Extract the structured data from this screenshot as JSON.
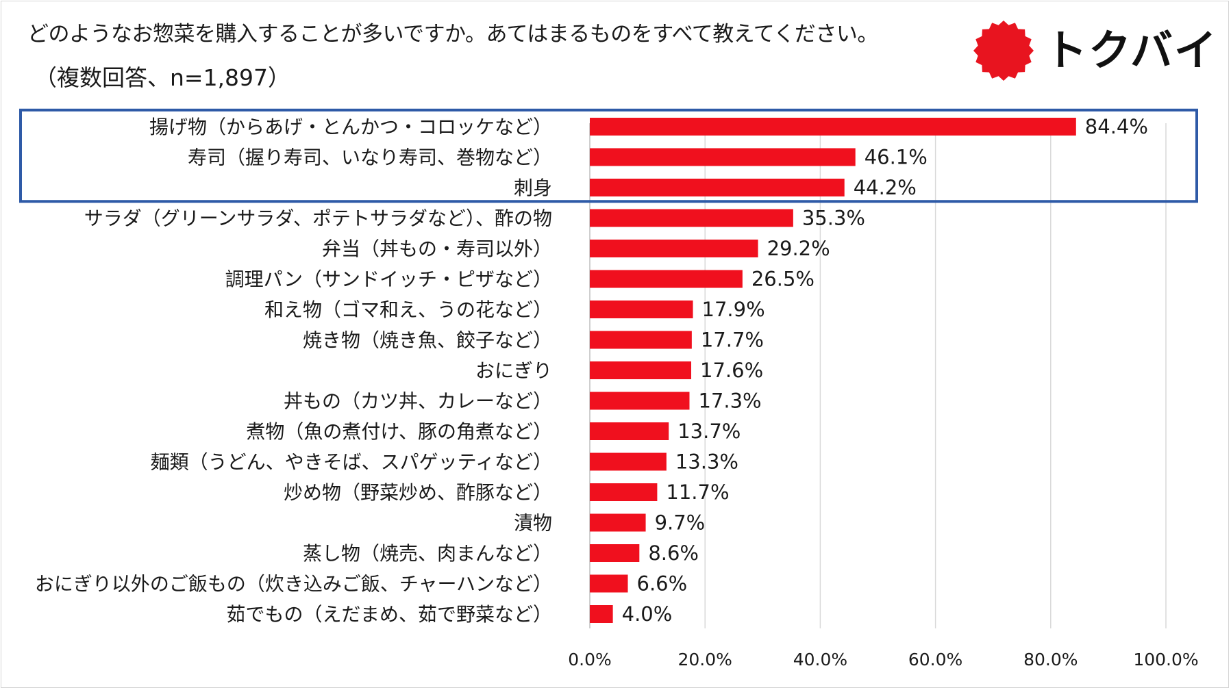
{
  "header": {
    "title": "どのようなお惣菜を購入することが多いですか。あてはまるものをすべて教えてください。",
    "subtitle": "（複数回答、n=1,897）"
  },
  "logo": {
    "text": "トクバイ",
    "brand_color": "#E8141F",
    "icon": "red-sun-seal-icon"
  },
  "colors": {
    "bar": "#F0101E",
    "highlight_box": "#2E5AA7",
    "grid": "#D9D9D9"
  },
  "chart_data": {
    "type": "bar",
    "orientation": "horizontal",
    "title": "どのようなお惣菜を購入することが多いですか。あてはまるものをすべて教えてください。",
    "xlabel": "",
    "ylabel": "",
    "xlim": [
      0,
      100
    ],
    "grid": true,
    "categories": [
      "揚げ物（からあげ・とんかつ・コロッケなど）",
      "寿司（握り寿司、いなり寿司、巻物など）",
      "刺身",
      "サラダ（グリーンサラダ、ポテトサラダなど）、酢の物",
      "弁当（丼もの・寿司以外）",
      "調理パン（サンドイッチ・ピザなど）",
      "和え物（ゴマ和え、うの花など）",
      "焼き物（焼き魚、餃子など）",
      "おにぎり",
      "丼もの（カツ丼、カレーなど）",
      "煮物（魚の煮付け、豚の角煮など）",
      "麺類（うどん、やきそば、スパゲッティなど）",
      "炒め物（野菜炒め、酢豚など）",
      "漬物",
      "蒸し物（焼売、肉まんなど）",
      "おにぎり以外のご飯もの（炊き込みご飯、チャーハンなど）",
      "茹でもの（えだまめ、茹で野菜など）"
    ],
    "values": [
      84.4,
      46.1,
      44.2,
      35.3,
      29.2,
      26.5,
      17.9,
      17.7,
      17.6,
      17.3,
      13.7,
      13.3,
      11.7,
      9.7,
      8.6,
      6.6,
      4.0
    ],
    "value_labels": [
      "84.4%",
      "46.1%",
      "44.2%",
      "35.3%",
      "29.2%",
      "26.5%",
      "17.9%",
      "17.7%",
      "17.6%",
      "17.3%",
      "13.7%",
      "13.3%",
      "11.7%",
      "9.7%",
      "8.6%",
      "6.6%",
      "4.0%"
    ],
    "ticks": [
      0,
      20,
      40,
      60,
      80,
      100
    ],
    "tick_labels": [
      "0.0%",
      "20.0%",
      "40.0%",
      "60.0%",
      "80.0%",
      "100.0%"
    ],
    "highlighted_categories": [
      0,
      1,
      2
    ]
  }
}
